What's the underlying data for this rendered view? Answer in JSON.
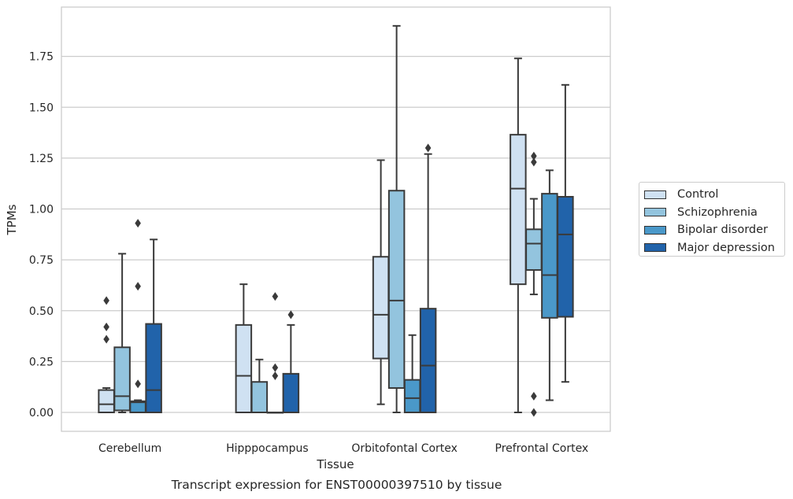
{
  "chart_data": {
    "type": "boxplot",
    "title": "",
    "xlabel": "Tissue",
    "ylabel": "TPMs",
    "caption": "Transcript expression for ENST00000397510 by tissue",
    "ylim": [
      -0.09,
      1.99
    ],
    "yticks": [
      "0.00",
      "0.25",
      "0.50",
      "0.75",
      "1.00",
      "1.25",
      "1.50",
      "1.75"
    ],
    "grid": "horizontal",
    "legend_position": "right",
    "categories": [
      "Cerebellum",
      "Hipppocampus",
      "Orbitofontal Cortex",
      "Prefrontal Cortex"
    ],
    "series": [
      {
        "name": "Control",
        "color": "#cfe1f2",
        "boxes": [
          {
            "whislo": 0.0,
            "q1": 0.0,
            "med": 0.04,
            "q3": 0.11,
            "whishi": 0.12,
            "fliers": [
              0.36,
              0.42,
              0.55
            ]
          },
          {
            "whislo": 0.0,
            "q1": 0.0,
            "med": 0.18,
            "q3": 0.43,
            "whishi": 0.63,
            "fliers": []
          },
          {
            "whislo": 0.04,
            "q1": 0.265,
            "med": 0.48,
            "q3": 0.765,
            "whishi": 1.24,
            "fliers": []
          },
          {
            "whislo": 0.0,
            "q1": 0.63,
            "med": 1.1,
            "q3": 1.365,
            "whishi": 1.74,
            "fliers": []
          }
        ]
      },
      {
        "name": "Schizophrenia",
        "color": "#93c4de",
        "boxes": [
          {
            "whislo": 0.0,
            "q1": 0.01,
            "med": 0.08,
            "q3": 0.32,
            "whishi": 0.78,
            "fliers": []
          },
          {
            "whislo": 0.0,
            "q1": 0.0,
            "med": 0.0,
            "q3": 0.15,
            "whishi": 0.26,
            "fliers": []
          },
          {
            "whislo": 0.0,
            "q1": 0.12,
            "med": 0.55,
            "q3": 1.09,
            "whishi": 1.9,
            "fliers": []
          },
          {
            "whislo": 0.58,
            "q1": 0.7,
            "med": 0.83,
            "q3": 0.9,
            "whishi": 1.05,
            "fliers": [
              0.0,
              0.08,
              1.23,
              1.26
            ]
          }
        ]
      },
      {
        "name": "Bipolar disorder",
        "color": "#4a98c9",
        "boxes": [
          {
            "whislo": 0.0,
            "q1": 0.0,
            "med": 0.05,
            "q3": 0.055,
            "whishi": 0.06,
            "fliers": [
              0.14,
              0.62,
              0.93
            ]
          },
          {
            "whislo": 0.0,
            "q1": 0.0,
            "med": 0.0,
            "q3": 0.0,
            "whishi": 0.0,
            "fliers": [
              0.18,
              0.22,
              0.57
            ]
          },
          {
            "whislo": 0.0,
            "q1": 0.0,
            "med": 0.07,
            "q3": 0.16,
            "whishi": 0.38,
            "fliers": []
          },
          {
            "whislo": 0.06,
            "q1": 0.465,
            "med": 0.675,
            "q3": 1.075,
            "whishi": 1.19,
            "fliers": []
          }
        ]
      },
      {
        "name": "Major depression",
        "color": "#2163aa",
        "boxes": [
          {
            "whislo": 0.0,
            "q1": 0.0,
            "med": 0.11,
            "q3": 0.435,
            "whishi": 0.85,
            "fliers": []
          },
          {
            "whislo": 0.0,
            "q1": 0.0,
            "med": 0.0,
            "q3": 0.19,
            "whishi": 0.43,
            "fliers": [
              0.48
            ]
          },
          {
            "whislo": 0.0,
            "q1": 0.0,
            "med": 0.23,
            "q3": 0.51,
            "whishi": 1.27,
            "fliers": [
              1.3
            ]
          },
          {
            "whislo": 0.15,
            "q1": 0.47,
            "med": 0.875,
            "q3": 1.06,
            "whishi": 1.61,
            "fliers": []
          }
        ]
      }
    ]
  },
  "legend": {
    "items": [
      {
        "label": "Control",
        "color": "#cfe1f2"
      },
      {
        "label": "Schizophrenia",
        "color": "#93c4de"
      },
      {
        "label": "Bipolar disorder",
        "color": "#4a98c9"
      },
      {
        "label": "Major depression",
        "color": "#2163aa"
      }
    ]
  }
}
